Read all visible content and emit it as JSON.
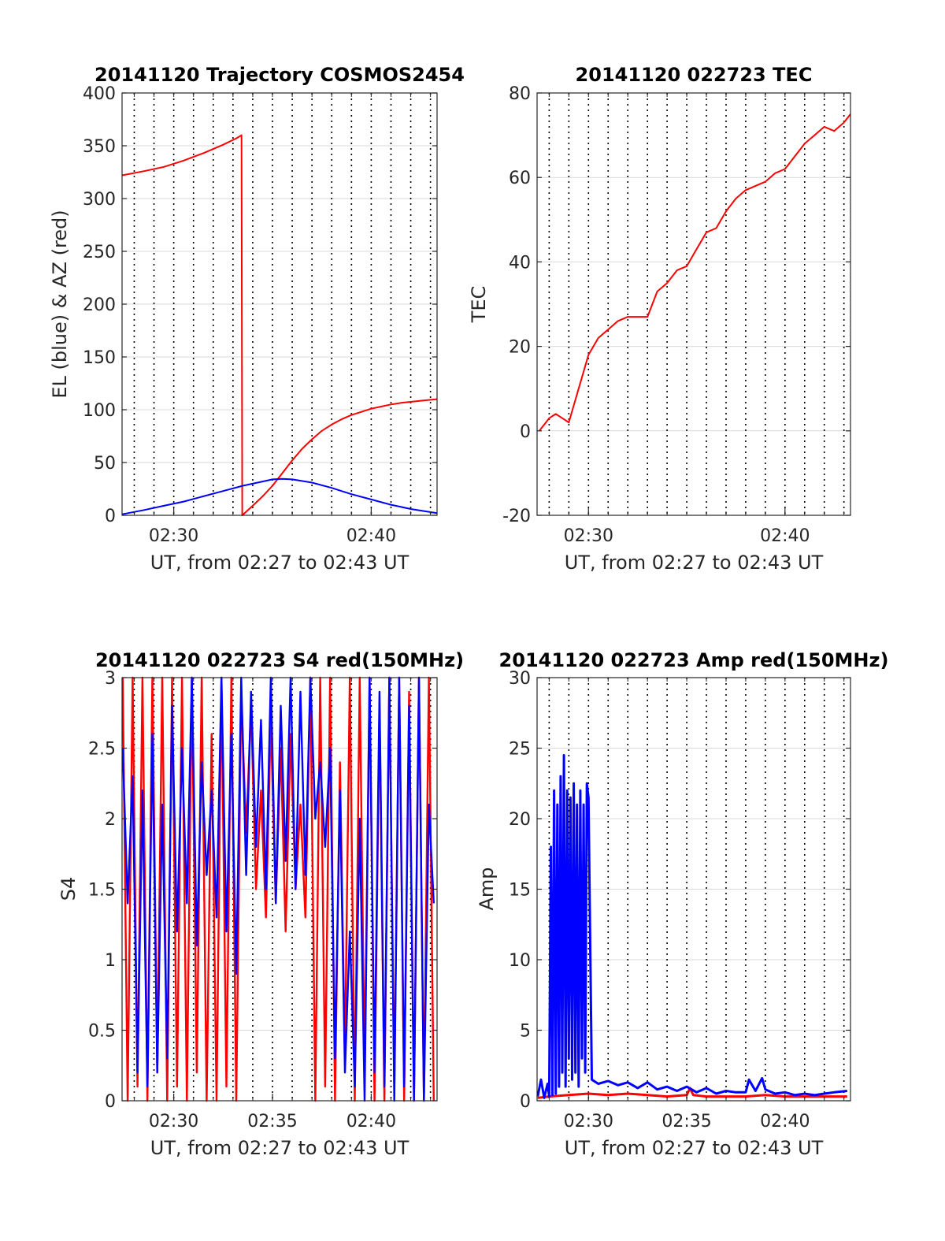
{
  "chart_data": [
    {
      "id": "trajectory",
      "type": "line",
      "title": "20141120 Trajectory COSMOS2454",
      "xlabel": "UT, from 02:27 to 02:43 UT",
      "ylabel": "EL (blue) & AZ (red)",
      "xlim": [
        "02:27:23",
        "02:43:20"
      ],
      "ylim": [
        0,
        400
      ],
      "yticks": [
        0,
        50,
        100,
        150,
        200,
        250,
        300,
        350,
        400
      ],
      "xticks": [
        {
          "t": "02:30",
          "label": "02:30"
        },
        {
          "t": "02:40",
          "label": "02:40"
        }
      ],
      "minor_grid_every_min": 1,
      "grid": true,
      "series": [
        {
          "color": "#ff0000",
          "x": [
            "02:27:23",
            "02:28:30",
            "02:29:30",
            "02:30:30",
            "02:31:30",
            "02:32:30",
            "02:33:10",
            "02:33:26",
            "02:33:28",
            "02:34:00",
            "02:34:30",
            "02:35:00",
            "02:35:30",
            "02:36:00",
            "02:36:30",
            "02:37:00",
            "02:37:30",
            "02:38:00",
            "02:38:30",
            "02:39:00",
            "02:39:30",
            "02:40:00",
            "02:40:30",
            "02:41:00",
            "02:41:30",
            "02:42:00",
            "02:42:30",
            "02:43:20"
          ],
          "y": [
            322,
            326,
            330,
            336,
            343,
            351,
            357,
            360,
            0,
            9,
            18,
            28,
            40,
            52,
            63,
            72,
            80,
            86,
            91,
            95,
            98,
            101,
            103,
            105,
            106.5,
            107.5,
            108.5,
            110
          ]
        },
        {
          "color": "#0000ff",
          "x": [
            "02:27:23",
            "02:28:30",
            "02:29:30",
            "02:30:30",
            "02:31:30",
            "02:32:30",
            "02:33:30",
            "02:34:30",
            "02:35:00",
            "02:35:30",
            "02:36:00",
            "02:37:00",
            "02:38:00",
            "02:39:00",
            "02:40:00",
            "02:41:00",
            "02:42:00",
            "02:43:20"
          ],
          "y": [
            1,
            5,
            9,
            13,
            18,
            23,
            28,
            32,
            34,
            34.5,
            34,
            31,
            26,
            20,
            15,
            10,
            6,
            2
          ]
        }
      ]
    },
    {
      "id": "tec",
      "type": "line",
      "title": "20141120 022723 TEC",
      "xlabel": "UT, from 02:27 to 02:43 UT",
      "ylabel": "TEC",
      "xlim": [
        "02:27:23",
        "02:43:20"
      ],
      "ylim": [
        -20,
        80
      ],
      "yticks": [
        -20,
        0,
        20,
        40,
        60,
        80
      ],
      "xticks": [
        {
          "t": "02:30",
          "label": "02:30"
        },
        {
          "t": "02:40",
          "label": "02:40"
        }
      ],
      "minor_grid_every_min": 1,
      "grid": true,
      "series": [
        {
          "color": "#ff0000",
          "x": [
            "02:27:30",
            "02:28:00",
            "02:28:20",
            "02:28:40",
            "02:29:00",
            "02:29:30",
            "02:30:00",
            "02:30:30",
            "02:31:00",
            "02:31:30",
            "02:32:00",
            "02:32:30",
            "02:33:00",
            "02:33:30",
            "02:34:00",
            "02:34:30",
            "02:35:00",
            "02:35:30",
            "02:36:00",
            "02:36:30",
            "02:37:00",
            "02:37:30",
            "02:38:00",
            "02:38:30",
            "02:39:00",
            "02:39:30",
            "02:40:00",
            "02:40:30",
            "02:41:00",
            "02:41:30",
            "02:42:00",
            "02:42:30",
            "02:43:00",
            "02:43:20"
          ],
          "y": [
            0,
            3,
            4,
            3,
            2,
            10,
            18,
            22,
            24,
            26,
            27,
            27,
            27,
            33,
            35,
            38,
            39,
            43,
            47,
            48,
            52,
            55,
            57,
            58,
            59,
            61,
            62,
            65,
            68,
            70,
            72,
            71,
            73,
            75
          ]
        }
      ]
    },
    {
      "id": "s4",
      "type": "line",
      "title": "20141120 022723 S4 red(150MHz)",
      "xlabel": "UT, from 02:27 to 02:43 UT",
      "ylabel": "S4",
      "xlim": [
        "02:27:23",
        "02:43:20"
      ],
      "ylim": [
        0,
        3
      ],
      "yticks": [
        0,
        0.5,
        1,
        1.5,
        2,
        2.5,
        3
      ],
      "xticks": [
        {
          "t": "02:30",
          "label": "02:30"
        },
        {
          "t": "02:35",
          "label": "02:35"
        },
        {
          "t": "02:40",
          "label": "02:40"
        }
      ],
      "minor_grid_every_min": 1,
      "grid": true,
      "series": [
        {
          "color": "#ff0000",
          "x": [
            "02:27:25",
            "02:27:40",
            "02:27:55",
            "02:28:10",
            "02:28:25",
            "02:28:40",
            "02:28:55",
            "02:29:10",
            "02:29:25",
            "02:29:40",
            "02:29:55",
            "02:30:10",
            "02:30:25",
            "02:30:40",
            "02:30:55",
            "02:31:10",
            "02:31:25",
            "02:31:40",
            "02:31:55",
            "02:32:10",
            "02:32:25",
            "02:32:40",
            "02:32:55",
            "02:33:10",
            "02:33:25",
            "02:33:40",
            "02:33:55",
            "02:34:10",
            "02:34:25",
            "02:34:40",
            "02:34:55",
            "02:35:10",
            "02:35:25",
            "02:35:40",
            "02:35:55",
            "02:36:10",
            "02:36:25",
            "02:36:40",
            "02:36:55",
            "02:37:10",
            "02:37:25",
            "02:37:40",
            "02:37:55",
            "02:38:10",
            "02:38:25",
            "02:38:40",
            "02:38:55",
            "02:39:10",
            "02:39:25",
            "02:39:40",
            "02:39:55",
            "02:40:10",
            "02:40:25",
            "02:40:40",
            "02:40:55",
            "02:41:10",
            "02:41:25",
            "02:41:40",
            "02:41:55",
            "02:42:10",
            "02:42:25",
            "02:42:40",
            "02:42:55",
            "02:43:10"
          ],
          "y": [
            3,
            0,
            3,
            0.1,
            3,
            0,
            3,
            0.2,
            3,
            0,
            3,
            0.1,
            3,
            0,
            3,
            0.2,
            3,
            0,
            2.6,
            0,
            3,
            0.1,
            3,
            0,
            2.9,
            1.9,
            2.8,
            1.5,
            2.2,
            1.3,
            2.7,
            1.4,
            2.5,
            1.2,
            2.6,
            1.5,
            2.1,
            1.3,
            3,
            0,
            3,
            0.1,
            3,
            0,
            2.4,
            0.3,
            3,
            0,
            3,
            0.2,
            3,
            0,
            2.8,
            0,
            3,
            0.1,
            3,
            0,
            2.9,
            0,
            3,
            0,
            3,
            0
          ]
        },
        {
          "color": "#0000ff",
          "x": [
            "02:27:25",
            "02:27:40",
            "02:27:55",
            "02:28:10",
            "02:28:25",
            "02:28:40",
            "02:28:55",
            "02:29:10",
            "02:29:25",
            "02:29:40",
            "02:29:55",
            "02:30:10",
            "02:30:25",
            "02:30:40",
            "02:30:55",
            "02:31:10",
            "02:31:25",
            "02:31:40",
            "02:31:55",
            "02:32:10",
            "02:32:25",
            "02:32:40",
            "02:32:55",
            "02:33:10",
            "02:33:25",
            "02:33:40",
            "02:33:55",
            "02:34:10",
            "02:34:25",
            "02:34:40",
            "02:34:55",
            "02:35:10",
            "02:35:25",
            "02:35:40",
            "02:35:55",
            "02:36:10",
            "02:36:25",
            "02:36:40",
            "02:36:55",
            "02:37:10",
            "02:37:25",
            "02:37:40",
            "02:37:55",
            "02:38:10",
            "02:38:25",
            "02:38:40",
            "02:38:55",
            "02:39:10",
            "02:39:25",
            "02:39:40",
            "02:39:55",
            "02:40:10",
            "02:40:25",
            "02:40:40",
            "02:40:55",
            "02:41:10",
            "02:41:25",
            "02:41:40",
            "02:41:55",
            "02:42:10",
            "02:42:25",
            "02:42:40",
            "02:42:55",
            "02:43:10"
          ],
          "y": [
            2.5,
            1.4,
            2.3,
            0.2,
            2.2,
            0.1,
            2.6,
            0.2,
            2.1,
            0.3,
            2.8,
            1.2,
            2.5,
            1.4,
            3,
            1.1,
            2.4,
            1.6,
            2.2,
            1.3,
            3,
            1.2,
            2.6,
            0.9,
            3,
            1.6,
            2.9,
            1.8,
            2.7,
            1.5,
            3,
            1.4,
            2.8,
            1.7,
            3,
            1.5,
            2.9,
            1.6,
            3,
            2,
            2.4,
            1.8,
            2.5,
            0.3,
            2.2,
            0.2,
            1.2,
            0.1,
            2,
            0,
            3,
            0.2,
            2.9,
            0.1,
            3,
            0,
            3,
            0.1,
            2.8,
            0,
            3,
            0,
            2.1,
            1.4
          ]
        }
      ]
    },
    {
      "id": "amp",
      "type": "line",
      "title": "20141120 022723 Amp red(150MHz)",
      "xlabel": "UT, from 02:27 to 02:43 UT",
      "ylabel": "Amp",
      "xlim": [
        "02:27:23",
        "02:43:20"
      ],
      "ylim": [
        0,
        30
      ],
      "yticks": [
        0,
        5,
        10,
        15,
        20,
        25,
        30
      ],
      "xticks": [
        {
          "t": "02:30",
          "label": "02:30"
        },
        {
          "t": "02:35",
          "label": "02:35"
        },
        {
          "t": "02:40",
          "label": "02:40"
        }
      ],
      "minor_grid_every_min": 1,
      "grid": true,
      "series": [
        {
          "color": "#ff0000",
          "x": [
            "02:27:25",
            "02:28:00",
            "02:29:00",
            "02:30:00",
            "02:31:00",
            "02:32:00",
            "02:33:00",
            "02:34:00",
            "02:35:00",
            "02:35:10",
            "02:35:20",
            "02:36:00",
            "02:37:00",
            "02:38:00",
            "02:39:00",
            "02:40:00",
            "02:41:00",
            "02:42:00",
            "02:43:10"
          ],
          "y": [
            0.2,
            0.3,
            0.4,
            0.5,
            0.4,
            0.5,
            0.4,
            0.3,
            0.4,
            0.9,
            0.4,
            0.3,
            0.3,
            0.3,
            0.4,
            0.3,
            0.3,
            0.3,
            0.3
          ]
        },
        {
          "color": "#0000ff",
          "x": [
            "02:27:25",
            "02:27:35",
            "02:27:45",
            "02:27:55",
            "02:28:00",
            "02:28:05",
            "02:28:10",
            "02:28:15",
            "02:28:20",
            "02:28:25",
            "02:28:30",
            "02:28:35",
            "02:28:40",
            "02:28:45",
            "02:28:50",
            "02:28:55",
            "02:29:00",
            "02:29:05",
            "02:29:10",
            "02:29:15",
            "02:29:20",
            "02:29:25",
            "02:29:30",
            "02:29:35",
            "02:29:40",
            "02:29:45",
            "02:29:50",
            "02:29:55",
            "02:30:00",
            "02:30:10",
            "02:30:30",
            "02:31:00",
            "02:31:30",
            "02:32:00",
            "02:32:30",
            "02:33:00",
            "02:33:30",
            "02:34:00",
            "02:34:30",
            "02:35:00",
            "02:35:30",
            "02:36:00",
            "02:36:30",
            "02:37:00",
            "02:37:30",
            "02:38:00",
            "02:38:10",
            "02:38:30",
            "02:38:50",
            "02:39:00",
            "02:39:30",
            "02:40:00",
            "02:40:30",
            "02:41:00",
            "02:41:30",
            "02:42:00",
            "02:42:30",
            "02:43:10"
          ],
          "y": [
            0.3,
            1.5,
            0.2,
            1.2,
            0.3,
            18,
            0.4,
            22,
            0.5,
            21,
            1,
            23,
            2,
            24.5,
            1,
            22,
            3,
            21.5,
            1.5,
            22.5,
            2,
            21,
            1,
            22,
            3,
            21,
            2,
            22.5,
            21.5,
            1.5,
            1.2,
            1.4,
            1.1,
            1.3,
            0.9,
            1.3,
            0.8,
            1.0,
            0.7,
            1.0,
            0.6,
            0.9,
            0.5,
            0.7,
            0.6,
            0.6,
            1.5,
            0.7,
            1.6,
            0.8,
            0.5,
            0.6,
            0.4,
            0.5,
            0.4,
            0.5,
            0.6,
            0.7
          ]
        }
      ]
    }
  ]
}
